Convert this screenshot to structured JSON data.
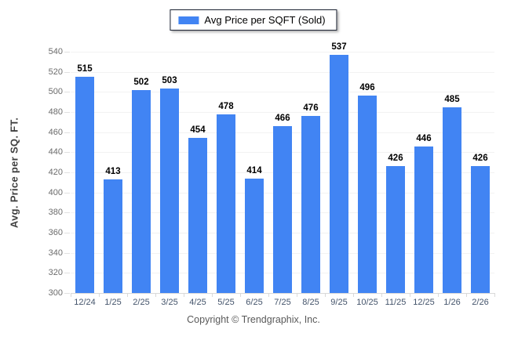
{
  "legend": {
    "label": "Avg Price per SQFT (Sold)",
    "swatch_color": "#4184f3"
  },
  "chart_data": {
    "type": "bar",
    "title": "",
    "categories": [
      "12/24",
      "1/25",
      "2/25",
      "3/25",
      "4/25",
      "5/25",
      "6/25",
      "7/25",
      "8/25",
      "9/25",
      "10/25",
      "11/25",
      "12/25",
      "1/26",
      "2/26"
    ],
    "values": [
      515,
      413,
      502,
      503,
      454,
      478,
      414,
      466,
      476,
      537,
      496,
      426,
      446,
      485,
      426
    ],
    "series_name": "Avg Price per SQFT (Sold)",
    "xlabel": "",
    "ylabel": "Avg. Price per SQ. FT.",
    "ylim": [
      300,
      540
    ],
    "ytick_step": 20,
    "grid": true,
    "legend_position": "top",
    "bar_color": "#4184f3",
    "value_labels_shown": true
  },
  "footer": {
    "copyright": "Copyright © Trendgraphix, Inc."
  },
  "colors": {
    "bar": "#4184f3",
    "gridline": "#f2f2f2",
    "baseline": "#d9d9d9",
    "y_tick_label": "#6b6b6b",
    "x_tick_label": "#44546b",
    "value_label": "#000000",
    "axis_title": "#3f3f3f",
    "copyright": "#595959",
    "legend_border": "#1c2333",
    "background": "#ffffff"
  }
}
